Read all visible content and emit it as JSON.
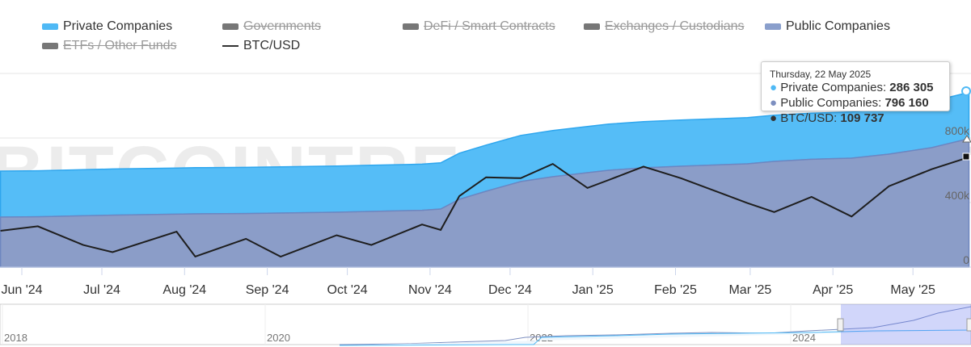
{
  "chart_data": {
    "type": "area",
    "legend": [
      {
        "name": "Private Companies",
        "visible": true,
        "color": "#4fb9f5"
      },
      {
        "name": "Governments",
        "visible": false,
        "color": "#777777"
      },
      {
        "name": "DeFi / Smart Contracts",
        "visible": false,
        "color": "#777777"
      },
      {
        "name": "Exchanges / Custodians",
        "visible": false,
        "color": "#777777"
      },
      {
        "name": "Public Companies",
        "visible": true,
        "color": "#8a9fcc"
      },
      {
        "name": "ETFs / Other Funds",
        "visible": false,
        "color": "#777777"
      },
      {
        "name": "BTC/USD",
        "visible": true,
        "color": "#222222"
      }
    ],
    "x": [
      "2024-05-24",
      "2024-06-07",
      "2024-06-24",
      "2024-07-05",
      "2024-07-29",
      "2024-08-05",
      "2024-08-24",
      "2024-09-06",
      "2024-09-27",
      "2024-10-10",
      "2024-10-29",
      "2024-11-05",
      "2024-11-12",
      "2024-11-22",
      "2024-12-05",
      "2024-12-17",
      "2024-12-30",
      "2025-01-07",
      "2025-01-20",
      "2025-02-03",
      "2025-02-28",
      "2025-03-10",
      "2025-03-24",
      "2025-04-08",
      "2025-04-22",
      "2025-05-08",
      "2025-05-22"
    ],
    "series": [
      {
        "name": "Public Companies",
        "values": [
          310000,
          312000,
          318000,
          322000,
          328000,
          330000,
          332000,
          335000,
          340000,
          345000,
          352000,
          360000,
          420000,
          470000,
          530000,
          560000,
          585000,
          600000,
          615000,
          625000,
          640000,
          655000,
          668000,
          675000,
          700000,
          740000,
          796160
        ]
      },
      {
        "name": "Private Companies",
        "values": [
          285000,
          285000,
          285500,
          286000,
          286000,
          286000,
          286000,
          286000,
          286000,
          286000,
          286000,
          286000,
          286000,
          286000,
          286000,
          286000,
          286000,
          286000,
          286000,
          286000,
          286000,
          286000,
          286100,
          286100,
          286200,
          286300,
          286305
        ]
      },
      {
        "name": "BTC/USD",
        "values": [
          68500,
          71000,
          60500,
          56500,
          68000,
          54000,
          64000,
          54000,
          66000,
          60500,
          72000,
          69000,
          88000,
          98500,
          98000,
          106000,
          92500,
          97000,
          104500,
          98000,
          84000,
          79000,
          87500,
          76500,
          93500,
          103000,
          109737
        ]
      }
    ],
    "y_ticks": [
      "0",
      "400k",
      "800k"
    ],
    "x_ticks": [
      "Jun '24",
      "Jul '24",
      "Aug '24",
      "Sep '24",
      "Oct '24",
      "Nov '24",
      "Dec '24",
      "Jan '25",
      "Feb '25",
      "Mar '25",
      "Apr '25",
      "May '25"
    ],
    "navigator_ticks": [
      "2018",
      "2020",
      "2022",
      "2024"
    ],
    "watermark": "BITCOINTREASURIES.NET"
  },
  "tooltip": {
    "date": "Thursday, 22 May 2025",
    "rows": [
      {
        "label": "Private Companies: ",
        "value": "286 305",
        "color": "#4fb9f5"
      },
      {
        "label": "Public Companies: ",
        "value": "796 160",
        "color": "#7d8fc0"
      },
      {
        "label": "BTC/USD: ",
        "value": "109 737",
        "color": "#333333"
      }
    ]
  }
}
